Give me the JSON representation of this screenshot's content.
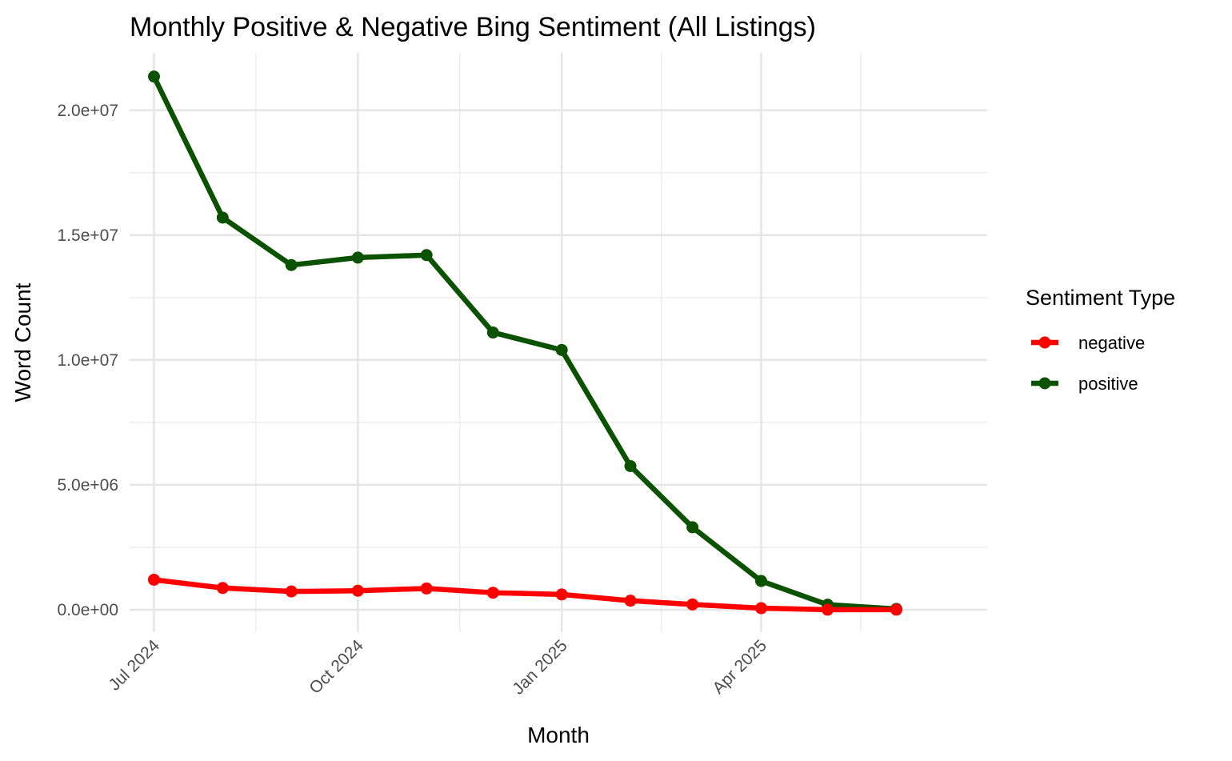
{
  "chart_data": {
    "type": "line",
    "title": "Monthly Positive & Negative Bing Sentiment (All Listings)",
    "xlabel": "Month",
    "ylabel": "Word Count",
    "x": [
      "2024-07",
      "2024-08",
      "2024-09",
      "2024-10",
      "2024-11",
      "2024-12",
      "2025-01",
      "2025-02",
      "2025-03",
      "2025-04",
      "2025-05",
      "2025-06"
    ],
    "xlim": [
      "2024-06-20",
      "2025-07-12"
    ],
    "x_ticks": [
      {
        "date": "2024-07-01",
        "label": "Jul 2024"
      },
      {
        "date": "2024-10-01",
        "label": "Oct 2024"
      },
      {
        "date": "2025-01-01",
        "label": "Jan 2025"
      },
      {
        "date": "2025-04-01",
        "label": "Apr 2025"
      }
    ],
    "x_minor_ticks": [
      "2024-08-16",
      "2024-11-16",
      "2025-02-15",
      "2025-05-16"
    ],
    "ylim": [
      -900000,
      22300000
    ],
    "y_ticks": [
      {
        "value": 0,
        "label": "0.0e+00"
      },
      {
        "value": 5000000,
        "label": "5.0e+06"
      },
      {
        "value": 10000000,
        "label": "1.0e+07"
      },
      {
        "value": 15000000,
        "label": "1.5e+07"
      },
      {
        "value": 20000000,
        "label": "2.0e+07"
      }
    ],
    "y_minor_ticks": [
      2500000,
      7500000,
      12500000,
      17500000
    ],
    "grid": true,
    "legend": {
      "title": "Sentiment Type",
      "position": "right"
    },
    "series": [
      {
        "name": "negative",
        "color": "#ff0000",
        "values": [
          1200000,
          870000,
          730000,
          760000,
          850000,
          680000,
          610000,
          360000,
          210000,
          60000,
          0,
          0
        ]
      },
      {
        "name": "positive",
        "color": "#0b5200",
        "values": [
          21350000,
          15700000,
          13800000,
          14100000,
          14200000,
          11100000,
          10400000,
          5750000,
          3300000,
          1150000,
          200000,
          30000
        ]
      }
    ]
  }
}
